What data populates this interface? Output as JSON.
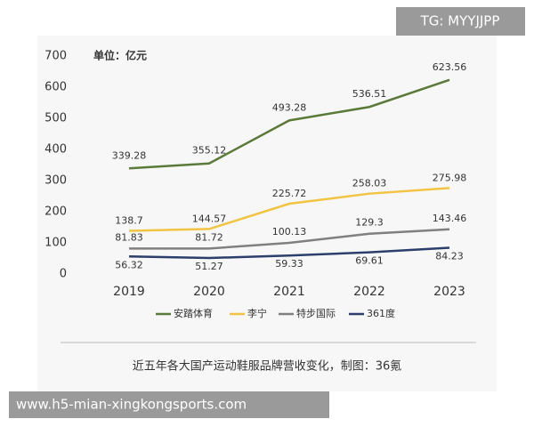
{
  "chart_data": {
    "type": "line",
    "unit_label": "单位：亿元",
    "categories": [
      "2019",
      "2020",
      "2021",
      "2022",
      "2023"
    ],
    "series": [
      {
        "name": "安踏体育",
        "color": "#5b7a3a",
        "values": [
          339.28,
          355.12,
          493.28,
          536.51,
          623.56
        ]
      },
      {
        "name": "李宁",
        "color": "#f2c443",
        "values": [
          138.7,
          144.57,
          225.72,
          258.03,
          275.98
        ]
      },
      {
        "name": "特步国际",
        "color": "#808080",
        "values": [
          81.83,
          81.72,
          100.13,
          129.3,
          143.46
        ]
      },
      {
        "name": "361度",
        "color": "#2c3e6b",
        "values": [
          56.32,
          51.27,
          59.33,
          69.61,
          84.23
        ]
      }
    ],
    "ylim": [
      0,
      700
    ],
    "yticks": [
      0,
      100,
      200,
      300,
      400,
      500,
      600,
      700
    ],
    "grid": false,
    "caption": "近五年各大国产运动鞋服品牌营收变化，制图：36氪"
  },
  "overlay": {
    "badge": "TG: MYYJJPP",
    "url": "www.h5-mian-xingkongsports.com"
  }
}
